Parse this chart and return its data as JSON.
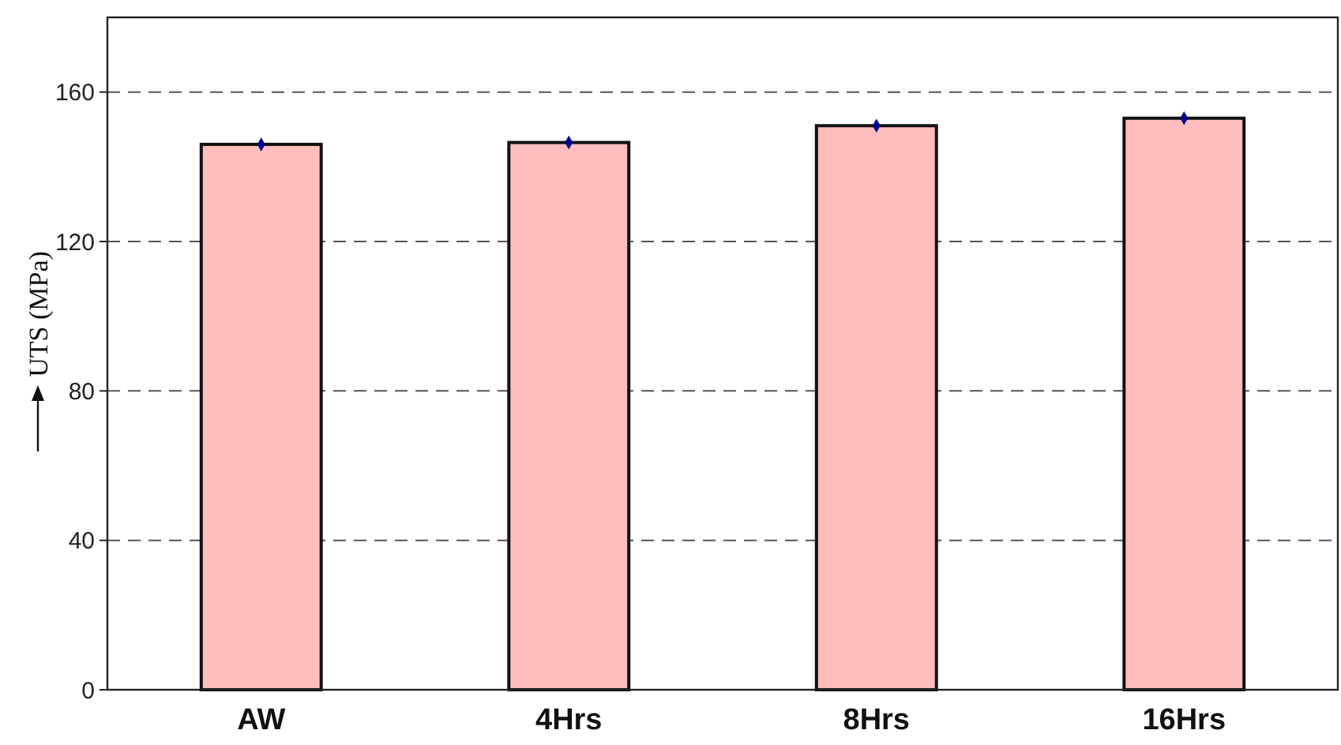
{
  "chart_data": {
    "type": "bar",
    "ylabel": "UTS (MPa)",
    "categories": [
      "AW",
      "4Hrs",
      "8Hrs",
      "16Hrs"
    ],
    "series": [
      {
        "color": "#ffbdbd",
        "values": [
          146,
          146.5,
          151,
          153
        ]
      },
      {
        "type": "scatter",
        "color": "#00008b",
        "marker": "diamond",
        "x": [
          "AW",
          "4Hrs",
          "8Hrs",
          "16Hrs"
        ],
        "values": [
          146,
          146.5,
          151,
          153
        ]
      }
    ],
    "ylim": [
      0,
      180
    ],
    "yticks": [
      0,
      40,
      80,
      120,
      160
    ],
    "grid": "y"
  }
}
